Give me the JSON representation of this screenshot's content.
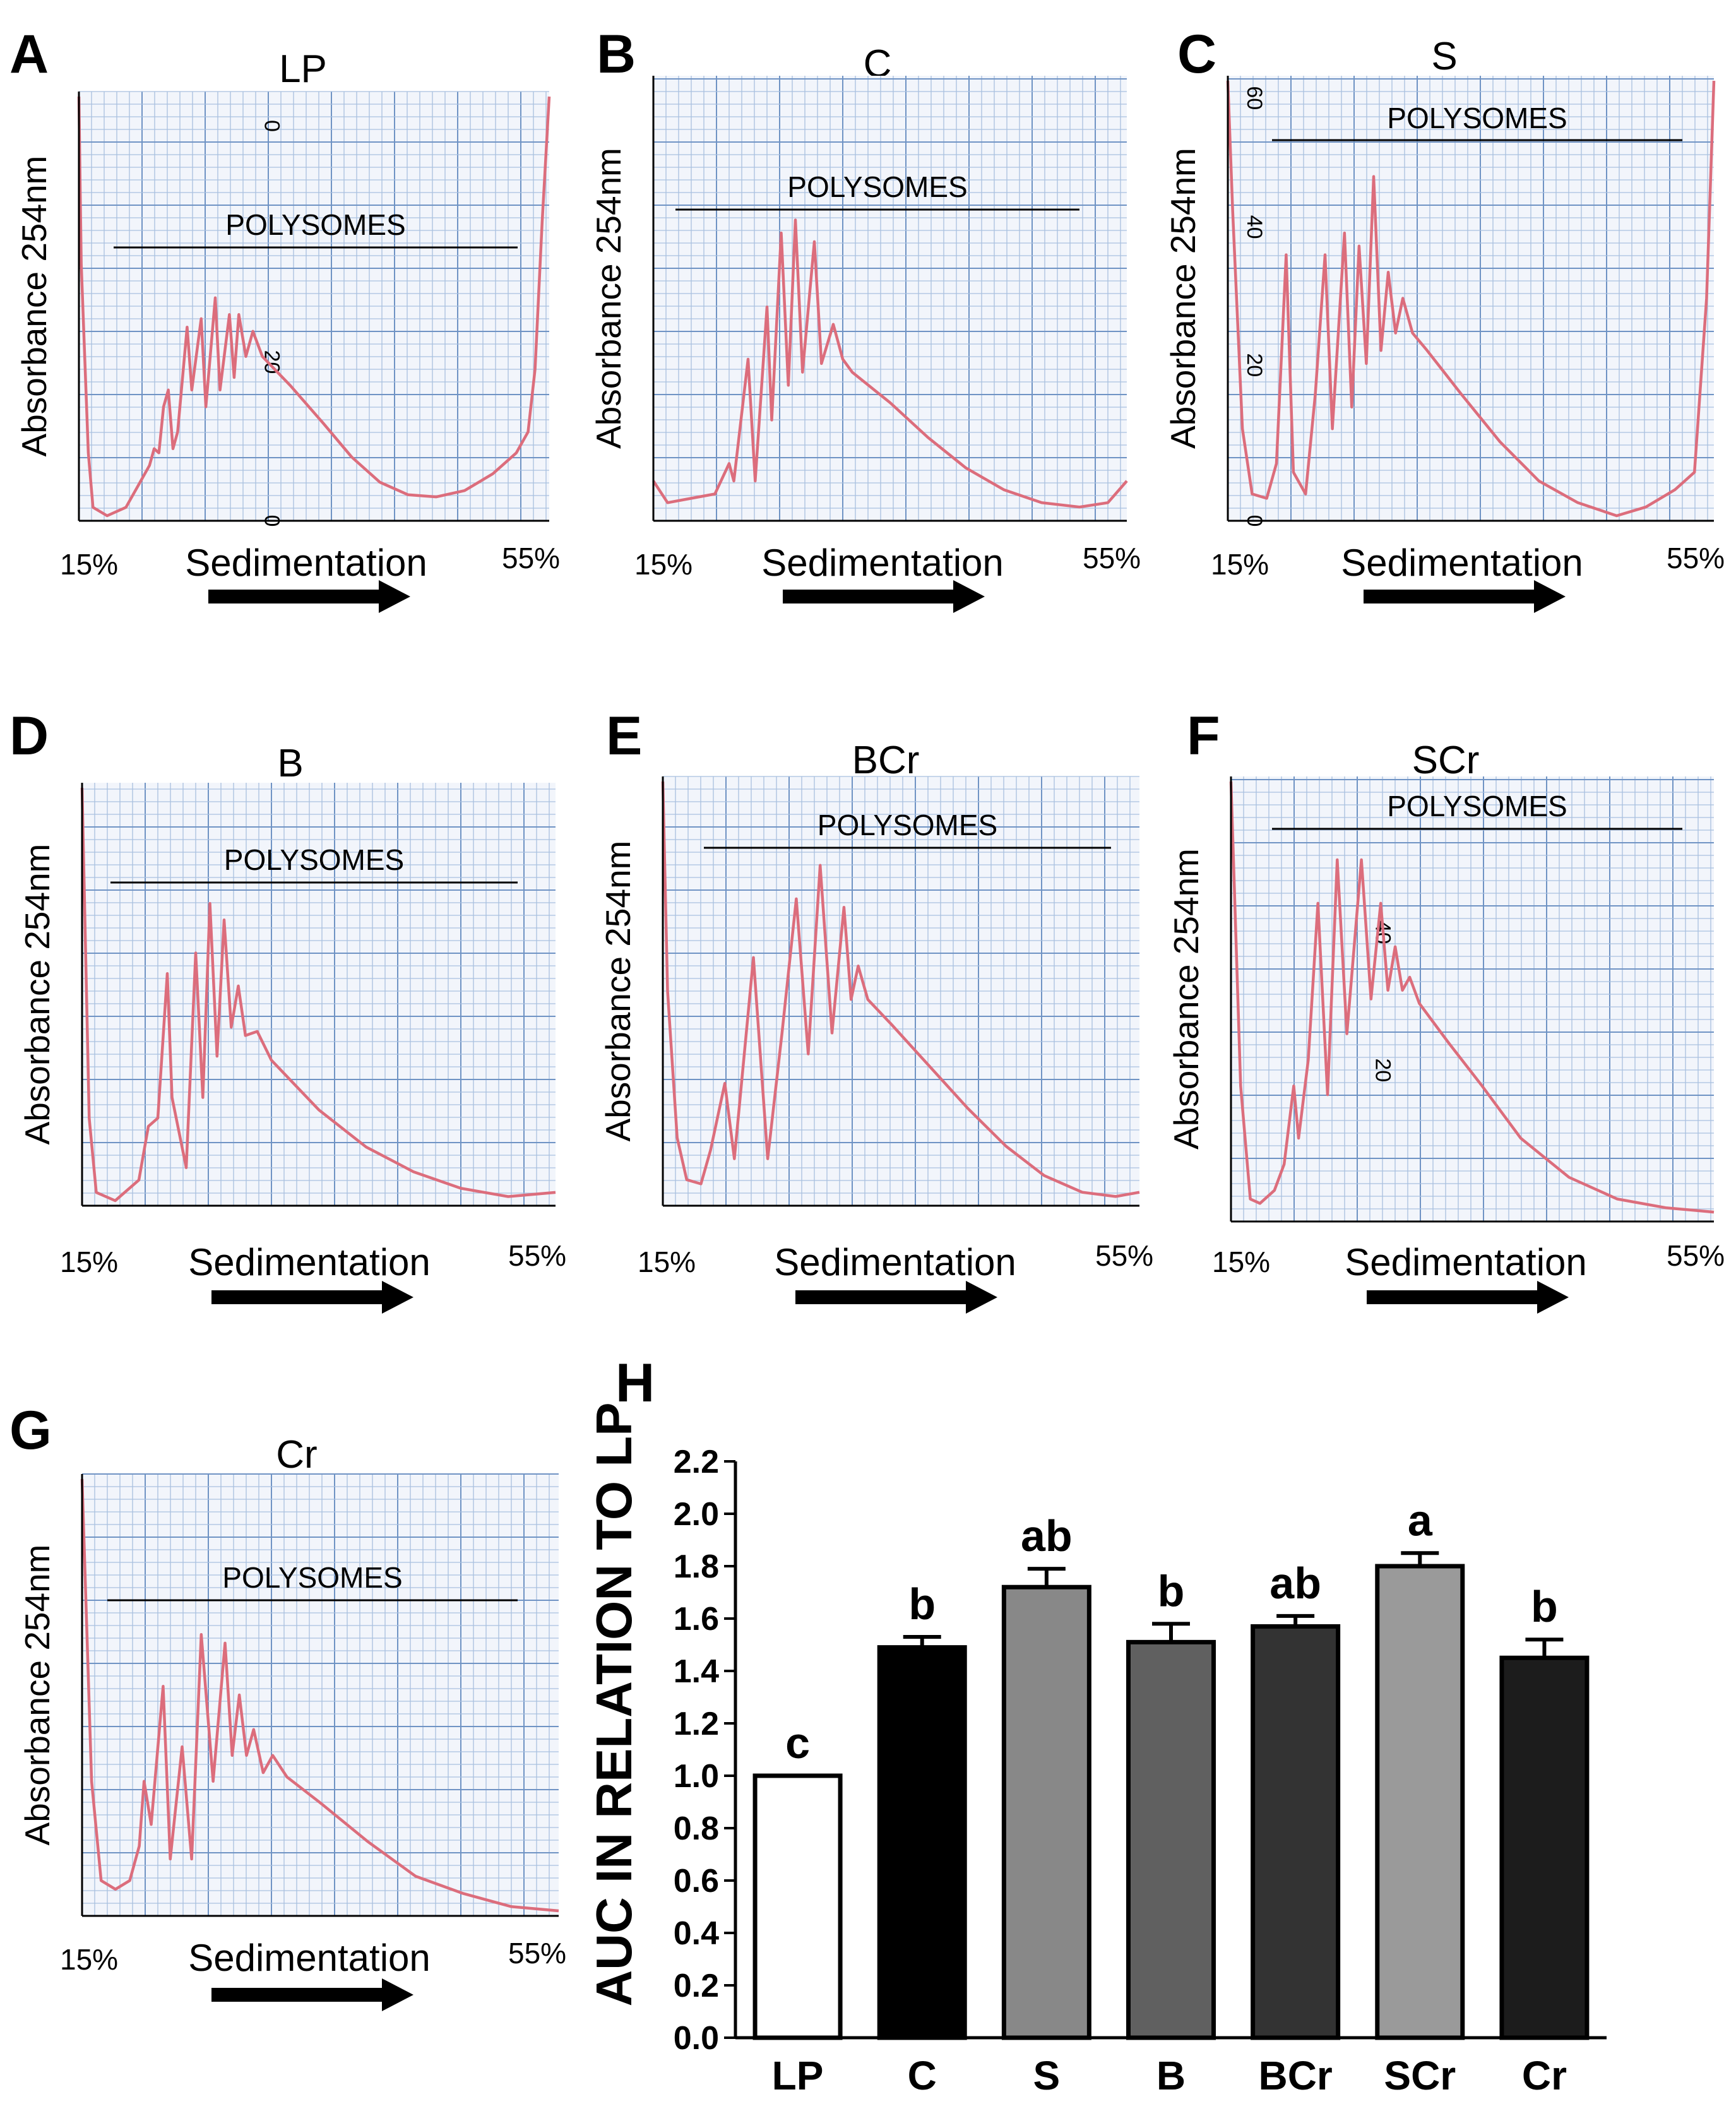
{
  "panels": [
    {
      "letter": "A",
      "title": "LP",
      "band_label": "POLYSOMES",
      "y_label": "Absorbance 254nm",
      "x_label": "Sedimentation",
      "x_start": "15%",
      "x_end": "55%",
      "paper_marks": [
        "0",
        "20",
        "0"
      ]
    },
    {
      "letter": "B",
      "title": "C",
      "band_label": "POLYSOMES",
      "y_label": "Absorbance 254nm",
      "x_label": "Sedimentation",
      "x_start": "15%",
      "x_end": "55%",
      "paper_marks": []
    },
    {
      "letter": "C",
      "title": "S",
      "band_label": "POLYSOMES",
      "y_label": "Absorbance 254nm",
      "x_label": "Sedimentation",
      "x_start": "15%",
      "x_end": "55%",
      "paper_marks": [
        "60",
        "40",
        "20",
        "0"
      ]
    },
    {
      "letter": "D",
      "title": "B",
      "band_label": "POLYSOMES",
      "y_label": "Absorbance 254nm",
      "x_label": "Sedimentation",
      "x_start": "15%",
      "x_end": "55%",
      "paper_marks": []
    },
    {
      "letter": "E",
      "title": "BCr",
      "band_label": "POLYSOMES",
      "y_label": "Absorbance 254nm",
      "x_label": "Sedimentation",
      "x_start": "15%",
      "x_end": "55%",
      "paper_marks": []
    },
    {
      "letter": "F",
      "title": "SCr",
      "band_label": "POLYSOMES",
      "y_label": "Absorbance 254nm",
      "x_label": "Sedimentation",
      "x_start": "15%",
      "x_end": "55%",
      "paper_marks": [
        "40",
        "20"
      ]
    },
    {
      "letter": "G",
      "title": "Cr",
      "band_label": "POLYSOMES",
      "y_label": "Absorbance 254nm",
      "x_label": "Sedimentation",
      "x_start": "15%",
      "x_end": "55%",
      "paper_marks": []
    }
  ],
  "colors": {
    "grid_major": "#6f93c4",
    "grid_minor": "#a9c0df",
    "paper_fill": "#f2f5fb",
    "trace": "#dc6d7c",
    "paper_mark": "#5f86bd"
  },
  "chart_data": {
    "type": "bar",
    "panel_letter": "H",
    "title": "",
    "xlabel": "",
    "ylabel": "AUC IN RELATION TO LP",
    "ylim": [
      0,
      2.2
    ],
    "yticks": [
      "0.0",
      "0.2",
      "0.4",
      "0.6",
      "0.8",
      "1.0",
      "1.2",
      "1.4",
      "1.6",
      "1.8",
      "2.0",
      "2.2"
    ],
    "categories": [
      "LP",
      "C",
      "S",
      "B",
      "BCr",
      "SCr",
      "Cr"
    ],
    "values": [
      1.0,
      1.49,
      1.72,
      1.51,
      1.57,
      1.8,
      1.45
    ],
    "errors": [
      0.0,
      0.04,
      0.07,
      0.07,
      0.04,
      0.05,
      0.07
    ],
    "significance": [
      "c",
      "b",
      "ab",
      "b",
      "ab",
      "a",
      "b"
    ],
    "bar_colors": [
      "#ffffff",
      "#000000",
      "#888888",
      "#606060",
      "#333333",
      "#9a9a9a",
      "#1c1c1c"
    ]
  }
}
